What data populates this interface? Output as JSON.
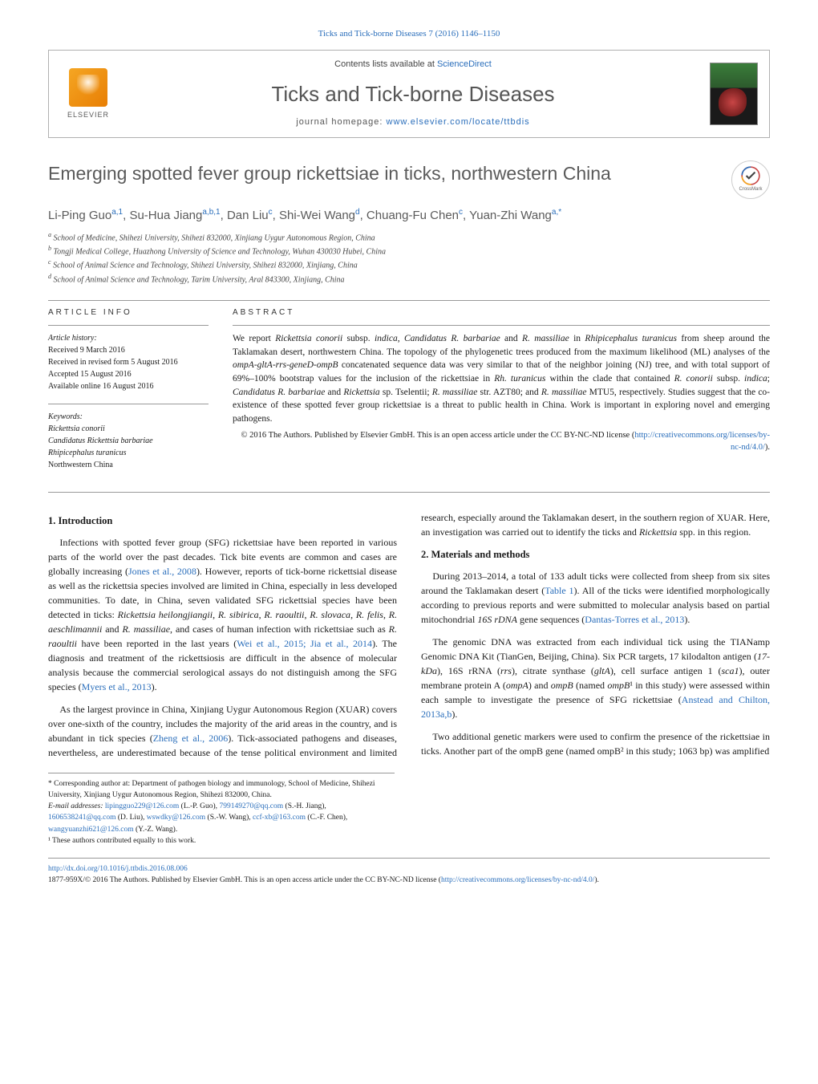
{
  "header": {
    "citation": "Ticks and Tick-borne Diseases 7 (2016) 1146–1150",
    "contents_prefix": "Contents lists available at ",
    "sciencedirect": "ScienceDirect",
    "journal_name": "Ticks and Tick-borne Diseases",
    "homepage_label": "journal homepage: ",
    "homepage_url": "www.elsevier.com/locate/ttbdis",
    "elsevier": "ELSEVIER",
    "crossmark": "CrossMark"
  },
  "article": {
    "title": "Emerging spotted fever group rickettsiae in ticks, northwestern China",
    "authors_html": "Li-Ping Guo<sup>a,1</sup>, Su-Hua Jiang<sup>a,b,1</sup>, Dan Liu<sup>c</sup>, Shi-Wei Wang<sup>d</sup>, Chuang-Fu Chen<sup>c</sup>, Yuan-Zhi Wang<sup>a,*</sup>",
    "affiliations": [
      "a School of Medicine, Shihezi University, Shihezi 832000, Xinjiang Uygur Autonomous Region, China",
      "b Tongji Medical College, Huazhong University of Science and Technology, Wuhan 430030 Hubei, China",
      "c School of Animal Science and Technology, Shihezi University, Shihezi 832000, Xinjiang, China",
      "d School of Animal Science and Technology, Tarim University, Aral 843300, Xinjiang, China"
    ]
  },
  "info": {
    "section_label": "article info",
    "history_label": "Article history:",
    "history": [
      "Received 9 March 2016",
      "Received in revised form 5 August 2016",
      "Accepted 15 August 2016",
      "Available online 16 August 2016"
    ],
    "keywords_label": "Keywords:",
    "keywords": [
      "Rickettsia conorii",
      "Candidatus Rickettsia barbariae",
      "Rhipicephalus turanicus",
      "Northwestern China"
    ]
  },
  "abstract": {
    "label": "abstract",
    "text": "We report Rickettsia conorii subsp. indica, Candidatus R. barbariae and R. massiliae in Rhipicephalus turanicus from sheep around the Taklamakan desert, northwestern China. The topology of the phylogenetic trees produced from the maximum likelihood (ML) analyses of the ompA-gltA-rrs-geneD-ompB concatenated sequence data was very similar to that of the neighbor joining (NJ) tree, and with total support of 69%–100% bootstrap values for the inclusion of the rickettsiae in Rh. turanicus within the clade that contained R. conorii subsp. indica; Candidatus R. barbariae and Rickettsia sp. Tselentii; R. massiliae str. AZT80; and R. massiliae MTU5, respectively. Studies suggest that the co-existence of these spotted fever group rickettsiae is a threat to public health in China. Work is important in exploring novel and emerging pathogens.",
    "copyright": "© 2016 The Authors. Published by Elsevier GmbH. This is an open access article under the CC BY-NC-ND license (",
    "license_url": "http://creativecommons.org/licenses/by-nc-nd/4.0/",
    "copyright_close": ")."
  },
  "body": {
    "sec1_title": "1. Introduction",
    "sec1_p1": "Infections with spotted fever group (SFG) rickettsiae have been reported in various parts of the world over the past decades. Tick bite events are common and cases are globally increasing (Jones et al., 2008). However, reports of tick-borne rickettsial disease as well as the rickettsia species involved are limited in China, especially in less developed communities. To date, in China, seven validated SFG rickettsial species have been detected in ticks: Rickettsia heilongjiangii, R. sibirica, R. raoultii, R. slovaca, R. felis, R. aeschlimannii and R. massiliae, and cases of human infection with rickettsiae such as R. raoultii have been reported in the last years (Wei et al., 2015; Jia et al., 2014). The diagnosis and treatment of the rickettsiosis are difficult in the absence of molecular analysis because the commercial serological assays do not distinguish among the SFG species (Myers et al., 2013).",
    "sec1_p2": "As the largest province in China, Xinjiang Uygur Autonomous Region (XUAR) covers over one-sixth of the country, includes the majority of the arid areas in the country, and is abundant in tick species (Zheng et al., 2006). Tick-associated pathogens and diseases, nevertheless, are underestimated because of the tense political environment and limited research, especially around the Taklamakan desert, in the southern region of XUAR. Here, an investigation was carried out to identify the ticks and Rickettsia spp. in this region.",
    "sec2_title": "2. Materials and methods",
    "sec2_p1": "During 2013–2014, a total of 133 adult ticks were collected from sheep from six sites around the Taklamakan desert (Table 1). All of the ticks were identified morphologically according to previous reports and were submitted to molecular analysis based on partial mitochondrial 16S rDNA gene sequences (Dantas-Torres et al., 2013).",
    "sec2_p2": "The genomic DNA was extracted from each individual tick using the TIANamp Genomic DNA Kit (TianGen, Beijing, China). Six PCR targets, 17 kilodalton antigen (17-kDa), 16S rRNA (rrs), citrate synthase (gltA), cell surface antigen 1 (sca1), outer membrane protein A (ompA) and ompB (named ompB¹ in this study) were assessed within each sample to investigate the presence of SFG rickettsiae (Anstead and Chilton, 2013a,b).",
    "sec2_p3": "Two additional genetic markers were used to confirm the presence of the rickettsiae in ticks. Another part of the ompB gene (named ompB² in this study; 1063 bp) was amplified"
  },
  "footnotes": {
    "corr": "* Corresponding author at: Department of pathogen biology and immunology, School of Medicine, Shihezi University, Xinjiang Uygur Autonomous Region, Shihezi 832000, China.",
    "emails_label": "E-mail addresses: ",
    "emails": [
      {
        "email": "lipingguo229@126.com",
        "who": " (L.-P. Guo), "
      },
      {
        "email": "799149270@qq.com",
        "who": " (S.-H. Jiang), "
      },
      {
        "email": "1606538241@qq.com",
        "who": " (D. Liu), "
      },
      {
        "email": "wswdky@126.com",
        "who": " (S.-W. Wang), "
      },
      {
        "email": "ccf-xb@163.com",
        "who": " (C.-F. Chen), "
      },
      {
        "email": "wangyuanzhi621@126.com",
        "who": " (Y.-Z. Wang)."
      }
    ],
    "equal": "¹ These authors contributed equally to this work."
  },
  "bottom": {
    "doi": "http://dx.doi.org/10.1016/j.ttbdis.2016.08.006",
    "issn_line": "1877-959X/© 2016 The Authors. Published by Elsevier GmbH. This is an open access article under the CC BY-NC-ND license (",
    "license_url": "http://creativecommons.org/licenses/by-nc-nd/4.0/",
    "close": ")."
  },
  "colors": {
    "link": "#2a6ebb",
    "text": "#1a1a1a",
    "muted": "#5a5a5a",
    "border": "#999999"
  }
}
